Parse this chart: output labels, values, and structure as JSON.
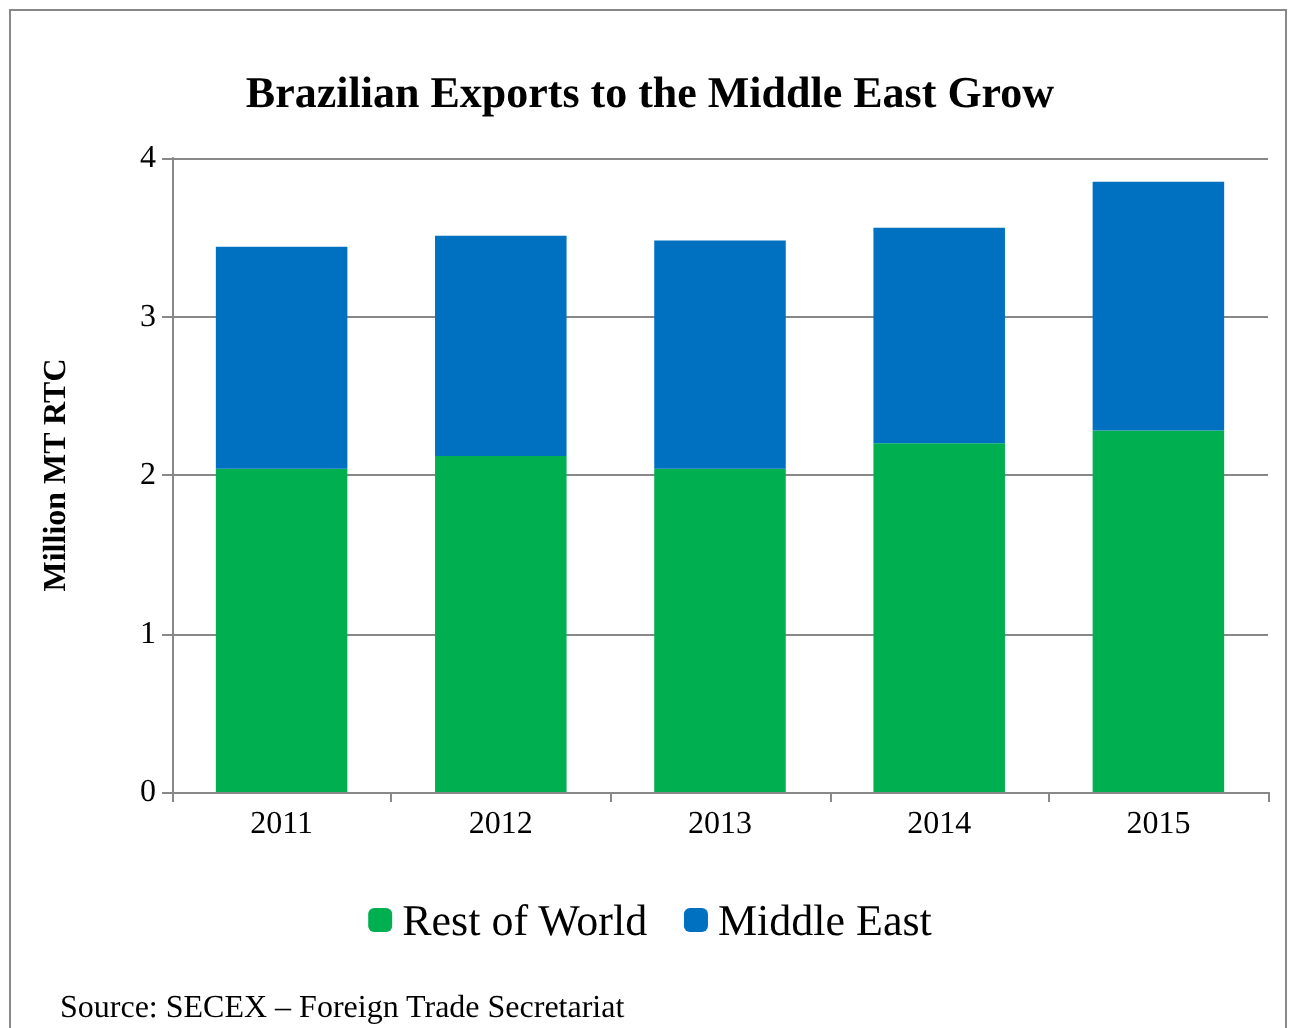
{
  "chart_data": {
    "type": "bar",
    "title": "Brazilian Exports to the Middle East Grow",
    "ylabel": "Million MT RTC",
    "categories": [
      "2011",
      "2012",
      "2013",
      "2014",
      "2015"
    ],
    "stacked": true,
    "series": [
      {
        "name": "Rest of World",
        "color": "#00b050",
        "values": [
          2.04,
          2.12,
          2.04,
          2.2,
          2.28
        ]
      },
      {
        "name": "Middle East",
        "color": "#0070c0",
        "values": [
          1.4,
          1.39,
          1.44,
          1.36,
          1.57
        ]
      }
    ],
    "ylim": [
      0,
      4
    ],
    "yticks": [
      0,
      1,
      2,
      3,
      4
    ],
    "grid": "y",
    "legend": "bottom",
    "annotations": [
      "Source: SECEX – Foreign Trade Secretariat"
    ]
  }
}
